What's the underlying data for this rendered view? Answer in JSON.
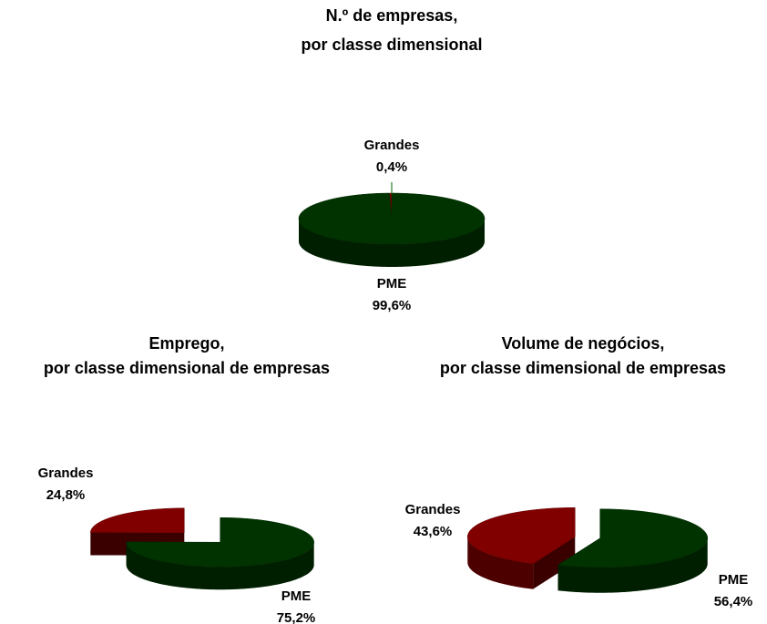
{
  "chart_data": [
    {
      "type": "pie3d",
      "title": [
        "N.º de empresas,",
        "por classe dimensional"
      ],
      "categories": [
        "Grandes",
        "PME"
      ],
      "values": [
        0.4,
        99.6
      ],
      "value_labels": [
        "0,4%",
        "99,6%"
      ],
      "colors": [
        "#800000",
        "#003300"
      ]
    },
    {
      "type": "pie3d",
      "title": [
        "Emprego,",
        "por classe dimensional de empresas"
      ],
      "categories": [
        "Grandes",
        "PME"
      ],
      "values": [
        24.8,
        75.2
      ],
      "value_labels": [
        "24,8%",
        "75,2%"
      ],
      "colors": [
        "#800000",
        "#003300"
      ]
    },
    {
      "type": "pie3d",
      "title": [
        "Volume de negócios,",
        "por classe dimensional de empresas"
      ],
      "categories": [
        "Grandes",
        "PME"
      ],
      "values": [
        43.6,
        56.4
      ],
      "value_labels": [
        "43,6%",
        "56,4%"
      ],
      "colors": [
        "#800000",
        "#003300"
      ]
    }
  ]
}
